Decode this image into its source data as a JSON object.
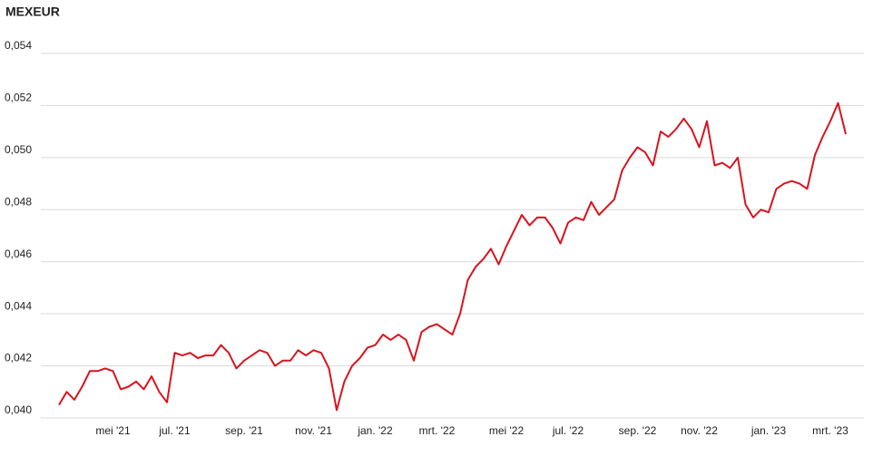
{
  "chart_data": {
    "type": "line",
    "title": "MEXEUR",
    "categories": [
      null,
      null,
      null,
      null,
      null,
      null,
      null,
      "mei '21",
      null,
      null,
      null,
      null,
      null,
      null,
      null,
      "jul. '21",
      null,
      null,
      null,
      null,
      null,
      null,
      null,
      null,
      "sep. '21",
      null,
      null,
      null,
      null,
      null,
      null,
      null,
      null,
      "nov. '21",
      null,
      null,
      null,
      null,
      null,
      null,
      null,
      "jan. '22",
      null,
      null,
      null,
      null,
      null,
      null,
      null,
      "mrt. '22",
      null,
      null,
      null,
      null,
      null,
      null,
      null,
      null,
      "mei '22",
      null,
      null,
      null,
      null,
      null,
      null,
      null,
      "jul. '22",
      null,
      null,
      null,
      null,
      null,
      null,
      null,
      null,
      "sep. '22",
      null,
      null,
      null,
      null,
      null,
      null,
      null,
      "nov. '22",
      null,
      null,
      null,
      null,
      null,
      null,
      null,
      null,
      "jan. '23",
      null,
      null,
      null,
      null,
      null,
      null,
      null,
      "mrt. '23",
      null,
      null
    ],
    "series": [
      {
        "name": "MEXEUR",
        "color": "#d7141e",
        "values": [
          0.0405,
          0.041,
          0.0407,
          0.0412,
          0.0418,
          0.0418,
          0.0419,
          0.0418,
          0.0411,
          0.0412,
          0.0414,
          0.0411,
          0.0416,
          0.041,
          0.0406,
          0.0425,
          0.0424,
          0.0425,
          0.0423,
          0.0424,
          0.0424,
          0.0428,
          0.0425,
          0.0419,
          0.0422,
          0.0424,
          0.0426,
          0.0425,
          0.042,
          0.0422,
          0.0422,
          0.0426,
          0.0424,
          0.0426,
          0.0425,
          0.0419,
          0.0403,
          0.0414,
          0.042,
          0.0423,
          0.0427,
          0.0428,
          0.0432,
          0.043,
          0.0432,
          0.043,
          0.0422,
          0.0433,
          0.0435,
          0.0436,
          0.0434,
          0.0432,
          0.044,
          0.0453,
          0.0458,
          0.0461,
          0.0465,
          0.0459,
          0.0466,
          0.0472,
          0.0478,
          0.0474,
          0.0477,
          0.0477,
          0.0473,
          0.0467,
          0.0475,
          0.0477,
          0.0476,
          0.0483,
          0.0478,
          0.0481,
          0.0484,
          0.0495,
          0.05,
          0.0504,
          0.0502,
          0.0497,
          0.051,
          0.0508,
          0.0511,
          0.0515,
          0.0511,
          0.0504,
          0.0514,
          0.0497,
          0.0498,
          0.0496,
          0.05,
          0.0482,
          0.0477,
          0.048,
          0.0479,
          0.0488,
          0.049,
          0.0491,
          0.049,
          0.0488,
          0.0501,
          0.0508,
          0.0514,
          0.0521,
          0.0509
        ]
      }
    ],
    "ylim": [
      0.04,
      0.054
    ],
    "yticks": [
      {
        "value": 0.04,
        "label": "0,040"
      },
      {
        "value": 0.042,
        "label": "0,042"
      },
      {
        "value": 0.044,
        "label": "0,044"
      },
      {
        "value": 0.046,
        "label": "0,046"
      },
      {
        "value": 0.048,
        "label": "0,048"
      },
      {
        "value": 0.05,
        "label": "0,050"
      },
      {
        "value": 0.052,
        "label": "0,052"
      },
      {
        "value": 0.054,
        "label": "0,054"
      }
    ],
    "grid": true
  }
}
